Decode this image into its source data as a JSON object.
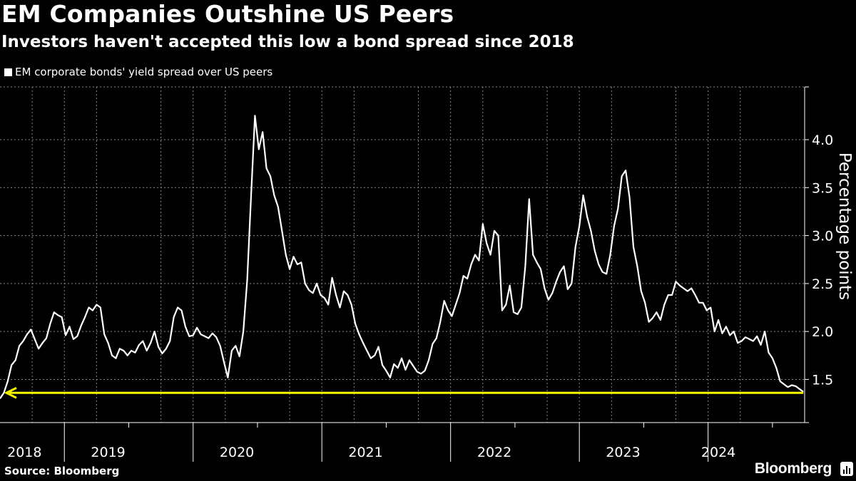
{
  "header": {
    "title": "EM Companies Outshine US Peers",
    "subtitle": "Investors haven't accepted this low a bond spread since 2018"
  },
  "footer": {
    "source": "Source: Bloomberg",
    "brand": "Bloomberg"
  },
  "colors": {
    "background": "#000000",
    "line": "#ffffff",
    "reference": "#f5f500",
    "grid": "#8a8a8a"
  },
  "chart_data": {
    "type": "line",
    "title": "EM Companies Outshine US Peers",
    "subtitle": "Investors haven't accepted this low a bond spread since 2018",
    "xlabel": "",
    "ylabel": "Percentage points",
    "legend": [
      "EM corporate bonds' yield spread over US peers"
    ],
    "legend_position": "top-left",
    "ylim": [
      1.05,
      4.55
    ],
    "yticks": [
      1.5,
      2.0,
      2.5,
      3.0,
      3.5,
      4.0
    ],
    "ytick_labels": [
      "1.5",
      "2.0",
      "2.5",
      "3.0",
      "3.5",
      "4.0"
    ],
    "xlim": [
      2018.0,
      2024.25
    ],
    "year_labels": [
      {
        "label": "2018",
        "center": 2018.19
      },
      {
        "label": "2019",
        "center": 2018.84
      },
      {
        "label": "2020",
        "center": 2019.84
      },
      {
        "label": "2021",
        "center": 2020.84
      },
      {
        "label": "2022",
        "center": 2021.84
      },
      {
        "label": "2023",
        "center": 2022.84
      },
      {
        "label": "2024",
        "center": 2023.58
      }
    ],
    "year_boundaries": [
      2018.5,
      2019.5,
      2020.5,
      2021.5,
      2022.5,
      2023.5
    ],
    "grid": true,
    "series": [
      {
        "name": "EM corporate bonds' yield spread over US peers",
        "x": [
          2018.0,
          2018.03,
          2018.06,
          2018.09,
          2018.12,
          2018.15,
          2018.18,
          2018.21,
          2018.24,
          2018.27,
          2018.3,
          2018.33,
          2018.36,
          2018.39,
          2018.42,
          2018.45,
          2018.48,
          2018.51,
          2018.54,
          2018.57,
          2018.6,
          2018.63,
          2018.66,
          2018.69,
          2018.72,
          2018.75,
          2018.78,
          2018.81,
          2018.84,
          2018.87,
          2018.9,
          2018.93,
          2018.96,
          2018.99,
          2019.02,
          2019.05,
          2019.08,
          2019.11,
          2019.14,
          2019.17,
          2019.2,
          2019.23,
          2019.26,
          2019.29,
          2019.32,
          2019.35,
          2019.38,
          2019.41,
          2019.44,
          2019.47,
          2019.5,
          2019.53,
          2019.56,
          2019.59,
          2019.62,
          2019.65,
          2019.68,
          2019.71,
          2019.74,
          2019.77,
          2019.8,
          2019.83,
          2019.86,
          2019.89,
          2019.92,
          2019.95,
          2019.98,
          2020.01,
          2020.04,
          2020.07,
          2020.1,
          2020.13,
          2020.16,
          2020.19,
          2020.22,
          2020.25,
          2020.28,
          2020.31,
          2020.34,
          2020.37,
          2020.4,
          2020.43,
          2020.46,
          2020.49,
          2020.52,
          2020.55,
          2020.58,
          2020.61,
          2020.64,
          2020.67,
          2020.7,
          2020.73,
          2020.76,
          2020.79,
          2020.82,
          2020.85,
          2020.88,
          2020.91,
          2020.94,
          2020.97,
          2021.0,
          2021.03,
          2021.06,
          2021.09,
          2021.12,
          2021.15,
          2021.18,
          2021.21,
          2021.24,
          2021.27,
          2021.3,
          2021.33,
          2021.36,
          2021.39,
          2021.42,
          2021.45,
          2021.48,
          2021.51,
          2021.54,
          2021.57,
          2021.6,
          2021.63,
          2021.66,
          2021.69,
          2021.72,
          2021.75,
          2021.78,
          2021.81,
          2021.84,
          2021.87,
          2021.9,
          2021.93,
          2021.96,
          2021.99,
          2022.02,
          2022.05,
          2022.08,
          2022.11,
          2022.14,
          2022.17,
          2022.2,
          2022.23,
          2022.26,
          2022.29,
          2022.32,
          2022.35,
          2022.38,
          2022.41,
          2022.44,
          2022.47,
          2022.5,
          2022.53,
          2022.56,
          2022.59,
          2022.62,
          2022.65,
          2022.68,
          2022.71,
          2022.74,
          2022.77,
          2022.8,
          2022.83,
          2022.86,
          2022.89,
          2022.92,
          2022.95,
          2022.98,
          2023.01,
          2023.04,
          2023.07,
          2023.1,
          2023.13,
          2023.16,
          2023.19,
          2023.22,
          2023.25,
          2023.28,
          2023.31,
          2023.34,
          2023.37,
          2023.4,
          2023.43,
          2023.46,
          2023.49,
          2023.52,
          2023.55,
          2023.58,
          2023.61,
          2023.64,
          2023.67,
          2023.7,
          2023.73,
          2023.76,
          2023.79,
          2023.82,
          2023.85,
          2023.88,
          2023.91,
          2023.94,
          2023.97,
          2024.0,
          2024.03,
          2024.06,
          2024.09,
          2024.12,
          2024.15,
          2024.18,
          2024.21,
          2024.24
        ],
        "values": [
          1.3,
          1.36,
          1.48,
          1.65,
          1.7,
          1.85,
          1.9,
          1.97,
          2.02,
          1.92,
          1.82,
          1.88,
          1.93,
          2.08,
          2.2,
          2.17,
          2.15,
          1.96,
          2.05,
          1.92,
          1.95,
          2.06,
          2.15,
          2.25,
          2.22,
          2.28,
          2.25,
          1.97,
          1.88,
          1.75,
          1.72,
          1.82,
          1.8,
          1.75,
          1.8,
          1.78,
          1.86,
          1.9,
          1.8,
          1.88,
          2.0,
          1.84,
          1.77,
          1.82,
          1.9,
          2.15,
          2.25,
          2.22,
          2.05,
          1.95,
          1.96,
          2.04,
          1.97,
          1.95,
          1.93,
          1.98,
          1.94,
          1.85,
          1.68,
          1.52,
          1.8,
          1.85,
          1.74,
          2.0,
          2.53,
          3.4,
          4.25,
          3.9,
          4.08,
          3.7,
          3.62,
          3.42,
          3.3,
          3.05,
          2.8,
          2.65,
          2.78,
          2.7,
          2.72,
          2.5,
          2.43,
          2.4,
          2.5,
          2.38,
          2.35,
          2.28,
          2.56,
          2.38,
          2.25,
          2.42,
          2.38,
          2.28,
          2.08,
          1.97,
          1.88,
          1.8,
          1.72,
          1.75,
          1.84,
          1.65,
          1.59,
          1.52,
          1.66,
          1.62,
          1.72,
          1.6,
          1.7,
          1.64,
          1.58,
          1.56,
          1.59,
          1.7,
          1.87,
          1.93,
          2.1,
          2.32,
          2.22,
          2.16,
          2.28,
          2.4,
          2.58,
          2.55,
          2.7,
          2.8,
          2.74,
          3.12,
          2.92,
          2.8,
          3.05,
          3.0,
          2.22,
          2.28,
          2.48,
          2.2,
          2.18,
          2.25,
          2.68,
          3.38,
          2.8,
          2.72,
          2.65,
          2.45,
          2.33,
          2.4,
          2.52,
          2.62,
          2.68,
          2.44,
          2.5,
          2.88,
          3.1,
          3.42,
          3.2,
          3.05,
          2.84,
          2.7,
          2.62,
          2.6,
          2.8,
          3.1,
          3.28,
          3.62,
          3.68,
          3.4,
          2.88,
          2.68,
          2.42,
          2.3,
          2.1,
          2.14,
          2.2,
          2.12,
          2.28,
          2.38,
          2.38,
          2.52,
          2.48,
          2.45,
          2.42,
          2.45,
          2.38,
          2.3,
          2.3,
          2.22,
          2.25,
          2.0,
          2.12,
          1.98,
          2.05,
          1.96,
          2.0,
          1.88,
          1.9,
          1.94,
          1.92,
          1.9,
          1.95,
          1.86,
          2.0,
          1.78,
          1.72,
          1.62,
          1.48,
          1.45,
          1.42,
          1.44,
          1.43,
          1.4,
          1.37
        ]
      }
    ],
    "reference_line": {
      "value": 1.36,
      "from": 2018.05,
      "to": 2024.24,
      "arrow": "left"
    }
  }
}
